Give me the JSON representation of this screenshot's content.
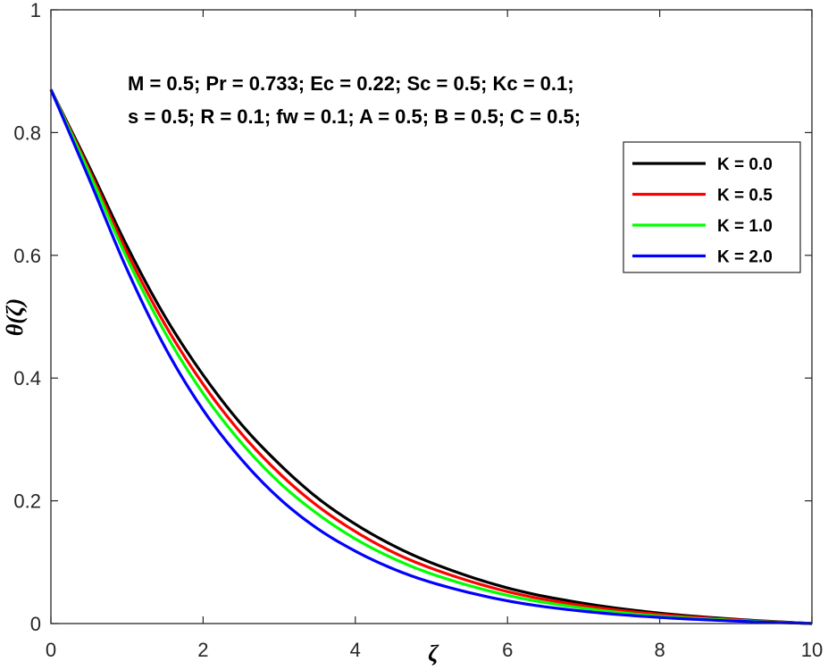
{
  "chart_data": {
    "type": "line",
    "xlabel": "ζ",
    "ylabel": "θ(ζ)",
    "xlim": [
      0,
      10
    ],
    "ylim": [
      0,
      1
    ],
    "xticks": [
      0,
      2,
      4,
      6,
      8,
      10
    ],
    "yticks": [
      0,
      0.2,
      0.4,
      0.6,
      0.8,
      1
    ],
    "xtick_labels": [
      "0",
      "2",
      "4",
      "6",
      "8",
      "10"
    ],
    "ytick_labels": [
      "0",
      "0.2",
      "0.4",
      "0.6",
      "0.8",
      "1"
    ],
    "grid": false,
    "legend_position": "top-right",
    "annotations": [
      "M = 0.5; Pr = 0.733; Ec = 0.22; Sc = 0.5; Kc = 0.1;",
      "s = 0.5; R = 0.1; fw = 0.1; A = 0.5; B = 0.5; C = 0.5;"
    ],
    "x": [
      0,
      0.5,
      1,
      1.5,
      2,
      2.5,
      3,
      3.5,
      4,
      4.5,
      5,
      6,
      7,
      8,
      9,
      10
    ],
    "series": [
      {
        "name": "K = 0.0",
        "color": "#000000",
        "values": [
          0.87,
          0.745,
          0.615,
          0.5,
          0.405,
          0.325,
          0.26,
          0.205,
          0.162,
          0.127,
          0.099,
          0.058,
          0.033,
          0.017,
          0.007,
          0.0
        ]
      },
      {
        "name": "K = 0.5",
        "color": "#ff0000",
        "values": [
          0.87,
          0.74,
          0.605,
          0.487,
          0.39,
          0.31,
          0.245,
          0.192,
          0.15,
          0.116,
          0.09,
          0.052,
          0.029,
          0.015,
          0.006,
          0.0
        ]
      },
      {
        "name": "K = 1.0",
        "color": "#00ff00",
        "values": [
          0.87,
          0.735,
          0.595,
          0.474,
          0.375,
          0.295,
          0.23,
          0.179,
          0.138,
          0.106,
          0.081,
          0.046,
          0.025,
          0.012,
          0.005,
          0.0
        ]
      },
      {
        "name": "K = 2.0",
        "color": "#0000ff",
        "values": [
          0.87,
          0.725,
          0.577,
          0.45,
          0.348,
          0.268,
          0.204,
          0.155,
          0.118,
          0.089,
          0.067,
          0.037,
          0.02,
          0.01,
          0.004,
          0.0
        ]
      }
    ]
  }
}
